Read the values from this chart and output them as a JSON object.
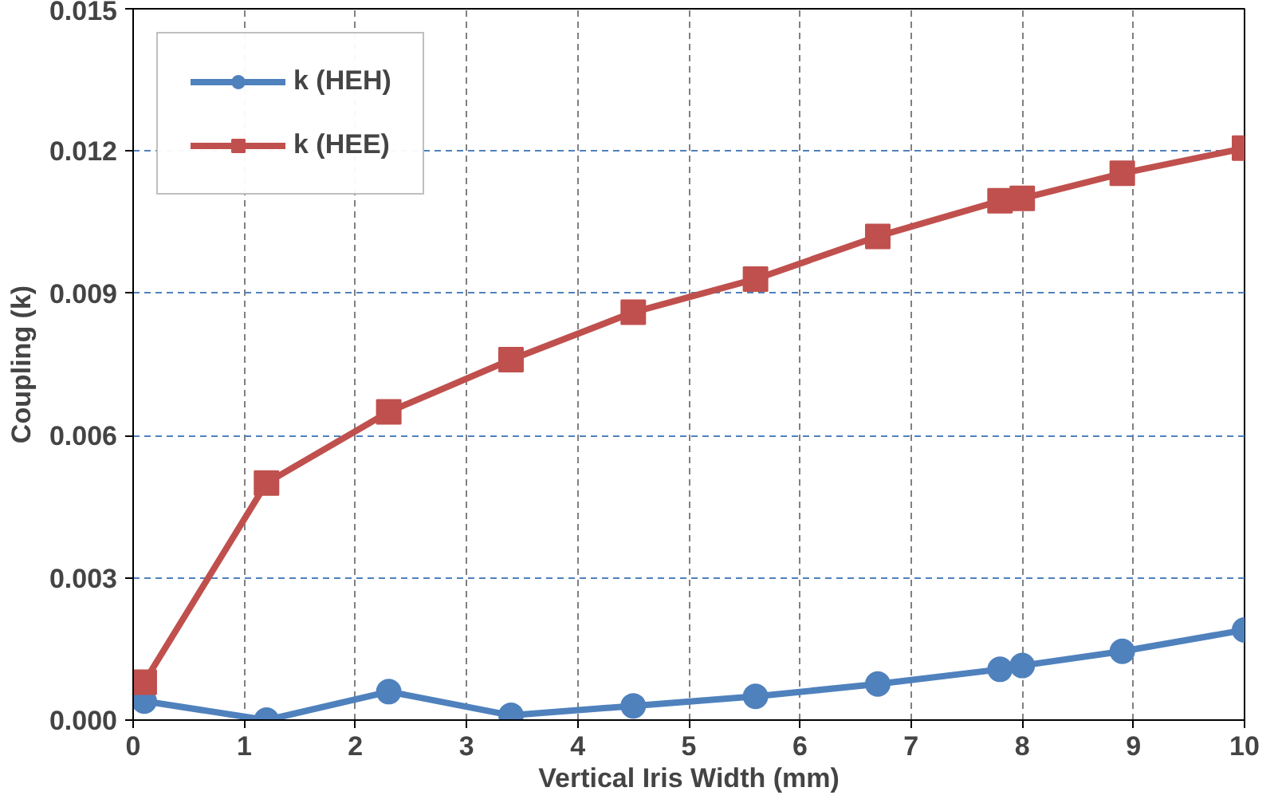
{
  "chart_data": {
    "type": "line",
    "xlabel": "Vertical Iris Width (mm)",
    "ylabel": "Coupling (k)",
    "x": [
      0.1,
      1.2,
      2.3,
      3.4,
      4.5,
      5.6,
      6.7,
      7.8,
      8.0,
      8.9,
      10.0
    ],
    "series": [
      {
        "name": "k (HEH)",
        "color": "#4f81bd",
        "marker": "circle",
        "values": [
          0.0004,
          0.0,
          0.0006,
          0.0001,
          0.0003,
          0.0005,
          0.00076,
          0.00107,
          0.00115,
          0.00145,
          0.0019
        ]
      },
      {
        "name": "k (HEE)",
        "color": "#c0504d",
        "marker": "square",
        "values": [
          0.0008,
          0.005,
          0.0065,
          0.0076,
          0.0086,
          0.0093,
          0.0102,
          0.01095,
          0.011,
          0.01153,
          0.01206
        ]
      }
    ],
    "xlim": [
      0,
      10
    ],
    "ylim": [
      0,
      0.015
    ],
    "xticks": [
      0,
      1,
      2,
      3,
      4,
      5,
      6,
      7,
      8,
      9,
      10
    ],
    "yticks": [
      {
        "value": 0,
        "label": "0.000"
      },
      {
        "value": 0.003,
        "label": "0.003"
      },
      {
        "value": 0.006,
        "label": "0.006"
      },
      {
        "value": 0.009,
        "label": "0.009"
      },
      {
        "value": 0.012,
        "label": "0.012"
      },
      {
        "value": 0.015,
        "label": "0.015"
      }
    ],
    "grid": true,
    "legend": "top left",
    "line_style": "solid"
  }
}
